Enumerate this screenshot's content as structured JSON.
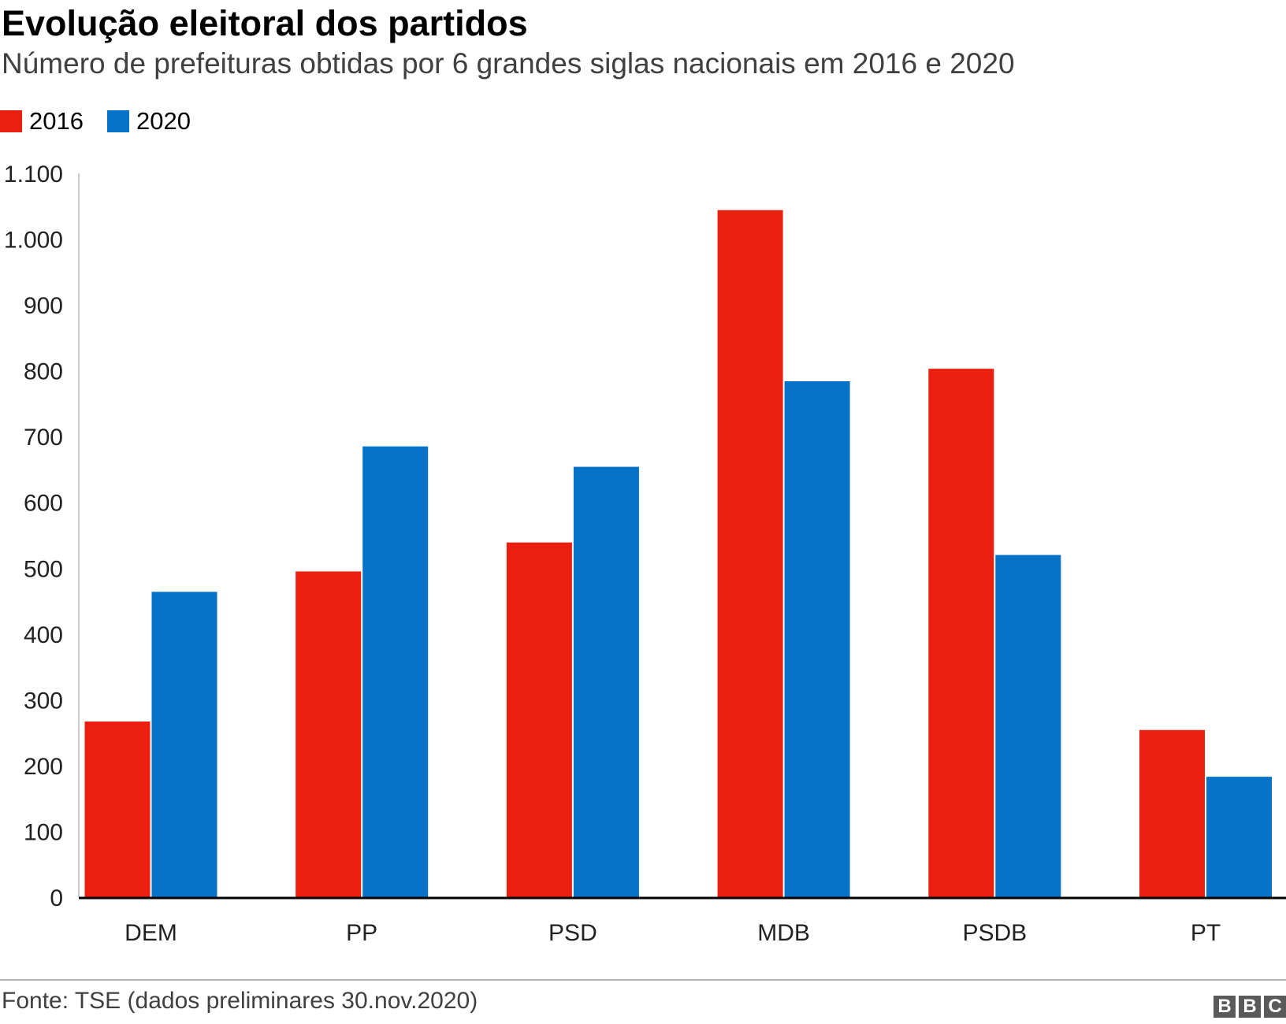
{
  "header": {
    "title": "Evolução eleitoral dos partidos",
    "subtitle": "Número de prefeituras obtidas por 6 grandes siglas nacionais em 2016 e 2020"
  },
  "footer": {
    "source": "Fonte: TSE (dados preliminares 30.nov.2020)",
    "logo": [
      "B",
      "B",
      "C"
    ]
  },
  "chart_data": {
    "type": "bar",
    "title": "Evolução eleitoral dos partidos",
    "subtitle": "Número de prefeituras obtidas por 6 grandes siglas nacionais em 2016 e 2020",
    "categories": [
      "DEM",
      "PP",
      "PSD",
      "MDB",
      "PSDB",
      "PT"
    ],
    "series": [
      {
        "name": "2016",
        "color": "#ea1f10",
        "values": [
          267,
          495,
          539,
          1044,
          803,
          254
        ]
      },
      {
        "name": "2020",
        "color": "#0673c8",
        "values": [
          464,
          685,
          654,
          784,
          520,
          183
        ]
      }
    ],
    "ylim": [
      0,
      1100
    ],
    "yticks": [
      0,
      100,
      200,
      300,
      400,
      500,
      600,
      700,
      800,
      900,
      1000,
      1100
    ],
    "ytick_labels": [
      "0",
      "100",
      "200",
      "300",
      "400",
      "500",
      "600",
      "700",
      "800",
      "900",
      "1.000",
      "1.100"
    ],
    "xlabel": "",
    "ylabel": "",
    "grid": false,
    "legend": "top-left"
  }
}
